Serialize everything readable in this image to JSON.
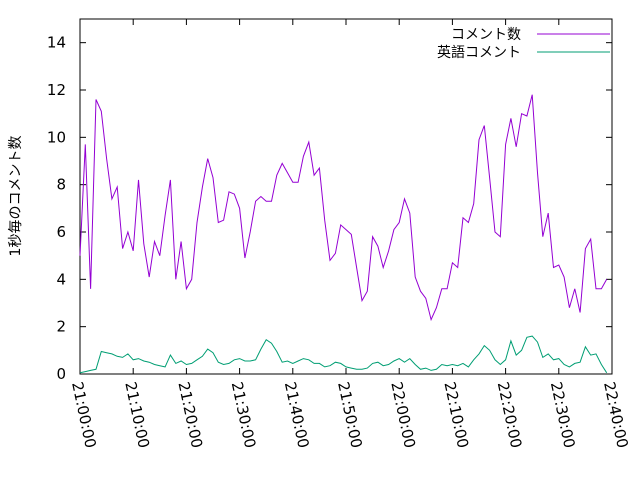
{
  "chart_data": {
    "type": "line",
    "title": "",
    "xlabel": "",
    "ylabel": "1秒毎のコメント数",
    "xlim": [
      "21:00:00",
      "22:40:00"
    ],
    "ylim": [
      0,
      15
    ],
    "x_ticks": [
      "21:00:00",
      "21:10:00",
      "21:20:00",
      "21:30:00",
      "21:40:00",
      "21:50:00",
      "22:00:00",
      "22:10:00",
      "22:20:00",
      "22:30:00",
      "22:40:00"
    ],
    "y_ticks": [
      0,
      2,
      4,
      6,
      8,
      10,
      12,
      14
    ],
    "grid": false,
    "legend_position": "top-right",
    "series": [
      {
        "name": "コメント数",
        "color": "#9400d3",
        "points": [
          [
            "21:00:00",
            5.0
          ],
          [
            "21:01:00",
            9.7
          ],
          [
            "21:02:00",
            3.6
          ],
          [
            "21:03:00",
            11.6
          ],
          [
            "21:04:00",
            11.1
          ],
          [
            "21:05:00",
            9.1
          ],
          [
            "21:06:00",
            7.4
          ],
          [
            "21:07:00",
            7.9
          ],
          [
            "21:08:00",
            5.3
          ],
          [
            "21:09:00",
            6.0
          ],
          [
            "21:10:00",
            5.2
          ],
          [
            "21:11:00",
            8.2
          ],
          [
            "21:12:00",
            5.5
          ],
          [
            "21:13:00",
            4.1
          ],
          [
            "21:14:00",
            5.6
          ],
          [
            "21:15:00",
            5.0
          ],
          [
            "21:16:00",
            6.7
          ],
          [
            "21:17:00",
            8.2
          ],
          [
            "21:18:00",
            4.0
          ],
          [
            "21:19:00",
            5.6
          ],
          [
            "21:20:00",
            3.6
          ],
          [
            "21:21:00",
            4.0
          ],
          [
            "21:22:00",
            6.4
          ],
          [
            "21:23:00",
            7.9
          ],
          [
            "21:24:00",
            9.1
          ],
          [
            "21:25:00",
            8.3
          ],
          [
            "21:26:00",
            6.4
          ],
          [
            "21:27:00",
            6.5
          ],
          [
            "21:28:00",
            7.7
          ],
          [
            "21:29:00",
            7.6
          ],
          [
            "21:30:00",
            7.0
          ],
          [
            "21:31:00",
            4.9
          ],
          [
            "21:32:00",
            6.0
          ],
          [
            "21:33:00",
            7.3
          ],
          [
            "21:34:00",
            7.5
          ],
          [
            "21:35:00",
            7.3
          ],
          [
            "21:36:00",
            7.3
          ],
          [
            "21:37:00",
            8.4
          ],
          [
            "21:38:00",
            8.9
          ],
          [
            "21:39:00",
            8.5
          ],
          [
            "21:40:00",
            8.1
          ],
          [
            "21:41:00",
            8.1
          ],
          [
            "21:42:00",
            9.2
          ],
          [
            "21:43:00",
            9.8
          ],
          [
            "21:44:00",
            8.4
          ],
          [
            "21:45:00",
            8.7
          ],
          [
            "21:46:00",
            6.5
          ],
          [
            "21:47:00",
            4.8
          ],
          [
            "21:48:00",
            5.1
          ],
          [
            "21:49:00",
            6.3
          ],
          [
            "21:50:00",
            6.1
          ],
          [
            "21:51:00",
            5.9
          ],
          [
            "21:52:00",
            4.5
          ],
          [
            "21:53:00",
            3.1
          ],
          [
            "21:54:00",
            3.5
          ],
          [
            "21:55:00",
            5.8
          ],
          [
            "21:56:00",
            5.4
          ],
          [
            "21:57:00",
            4.5
          ],
          [
            "21:58:00",
            5.2
          ],
          [
            "21:59:00",
            6.1
          ],
          [
            "22:00:00",
            6.4
          ],
          [
            "22:01:00",
            7.4
          ],
          [
            "22:02:00",
            6.8
          ],
          [
            "22:03:00",
            4.1
          ],
          [
            "22:04:00",
            3.5
          ],
          [
            "22:05:00",
            3.2
          ],
          [
            "22:06:00",
            2.3
          ],
          [
            "22:07:00",
            2.8
          ],
          [
            "22:08:00",
            3.6
          ],
          [
            "22:09:00",
            3.6
          ],
          [
            "22:10:00",
            4.7
          ],
          [
            "22:11:00",
            4.5
          ],
          [
            "22:12:00",
            6.6
          ],
          [
            "22:13:00",
            6.4
          ],
          [
            "22:14:00",
            7.2
          ],
          [
            "22:15:00",
            9.9
          ],
          [
            "22:16:00",
            10.5
          ],
          [
            "22:17:00",
            8.3
          ],
          [
            "22:18:00",
            6.0
          ],
          [
            "22:19:00",
            5.8
          ],
          [
            "22:20:00",
            9.7
          ],
          [
            "22:21:00",
            10.8
          ],
          [
            "22:22:00",
            9.6
          ],
          [
            "22:23:00",
            11.0
          ],
          [
            "22:24:00",
            10.9
          ],
          [
            "22:25:00",
            11.8
          ],
          [
            "22:26:00",
            8.5
          ],
          [
            "22:27:00",
            5.8
          ],
          [
            "22:28:00",
            6.8
          ],
          [
            "22:29:00",
            4.5
          ],
          [
            "22:30:00",
            4.6
          ],
          [
            "22:31:00",
            4.1
          ],
          [
            "22:32:00",
            2.8
          ],
          [
            "22:33:00",
            3.6
          ],
          [
            "22:34:00",
            2.6
          ],
          [
            "22:35:00",
            5.3
          ],
          [
            "22:36:00",
            5.7
          ],
          [
            "22:37:00",
            3.6
          ],
          [
            "22:38:00",
            3.6
          ],
          [
            "22:39:00",
            4.0
          ]
        ]
      },
      {
        "name": "英語コメント",
        "color": "#009e73",
        "points": [
          [
            "21:00:00",
            0.05
          ],
          [
            "21:01:00",
            0.1
          ],
          [
            "21:02:00",
            0.15
          ],
          [
            "21:03:00",
            0.2
          ],
          [
            "21:04:00",
            0.95
          ],
          [
            "21:05:00",
            0.9
          ],
          [
            "21:06:00",
            0.85
          ],
          [
            "21:07:00",
            0.75
          ],
          [
            "21:08:00",
            0.7
          ],
          [
            "21:09:00",
            0.85
          ],
          [
            "21:10:00",
            0.6
          ],
          [
            "21:11:00",
            0.65
          ],
          [
            "21:12:00",
            0.55
          ],
          [
            "21:13:00",
            0.5
          ],
          [
            "21:14:00",
            0.4
          ],
          [
            "21:15:00",
            0.35
          ],
          [
            "21:16:00",
            0.3
          ],
          [
            "21:17:00",
            0.8
          ],
          [
            "21:18:00",
            0.45
          ],
          [
            "21:19:00",
            0.55
          ],
          [
            "21:20:00",
            0.4
          ],
          [
            "21:21:00",
            0.45
          ],
          [
            "21:22:00",
            0.6
          ],
          [
            "21:23:00",
            0.75
          ],
          [
            "21:24:00",
            1.05
          ],
          [
            "21:25:00",
            0.9
          ],
          [
            "21:26:00",
            0.5
          ],
          [
            "21:27:00",
            0.4
          ],
          [
            "21:28:00",
            0.45
          ],
          [
            "21:29:00",
            0.6
          ],
          [
            "21:30:00",
            0.65
          ],
          [
            "21:31:00",
            0.55
          ],
          [
            "21:32:00",
            0.55
          ],
          [
            "21:33:00",
            0.6
          ],
          [
            "21:34:00",
            1.05
          ],
          [
            "21:35:00",
            1.45
          ],
          [
            "21:36:00",
            1.3
          ],
          [
            "21:37:00",
            0.95
          ],
          [
            "21:38:00",
            0.5
          ],
          [
            "21:39:00",
            0.55
          ],
          [
            "21:40:00",
            0.45
          ],
          [
            "21:41:00",
            0.55
          ],
          [
            "21:42:00",
            0.65
          ],
          [
            "21:43:00",
            0.6
          ],
          [
            "21:44:00",
            0.45
          ],
          [
            "21:45:00",
            0.45
          ],
          [
            "21:46:00",
            0.3
          ],
          [
            "21:47:00",
            0.35
          ],
          [
            "21:48:00",
            0.5
          ],
          [
            "21:49:00",
            0.45
          ],
          [
            "21:50:00",
            0.3
          ],
          [
            "21:51:00",
            0.25
          ],
          [
            "21:52:00",
            0.2
          ],
          [
            "21:53:00",
            0.2
          ],
          [
            "21:54:00",
            0.25
          ],
          [
            "21:55:00",
            0.45
          ],
          [
            "21:56:00",
            0.5
          ],
          [
            "21:57:00",
            0.35
          ],
          [
            "21:58:00",
            0.4
          ],
          [
            "21:59:00",
            0.55
          ],
          [
            "22:00:00",
            0.65
          ],
          [
            "22:01:00",
            0.5
          ],
          [
            "22:02:00",
            0.65
          ],
          [
            "22:03:00",
            0.4
          ],
          [
            "22:04:00",
            0.2
          ],
          [
            "22:05:00",
            0.25
          ],
          [
            "22:06:00",
            0.15
          ],
          [
            "22:07:00",
            0.2
          ],
          [
            "22:08:00",
            0.4
          ],
          [
            "22:09:00",
            0.35
          ],
          [
            "22:10:00",
            0.4
          ],
          [
            "22:11:00",
            0.35
          ],
          [
            "22:12:00",
            0.45
          ],
          [
            "22:13:00",
            0.3
          ],
          [
            "22:14:00",
            0.6
          ],
          [
            "22:15:00",
            0.85
          ],
          [
            "22:16:00",
            1.2
          ],
          [
            "22:17:00",
            1.0
          ],
          [
            "22:18:00",
            0.6
          ],
          [
            "22:19:00",
            0.4
          ],
          [
            "22:20:00",
            0.6
          ],
          [
            "22:21:00",
            1.4
          ],
          [
            "22:22:00",
            0.8
          ],
          [
            "22:23:00",
            1.0
          ],
          [
            "22:24:00",
            1.55
          ],
          [
            "22:25:00",
            1.6
          ],
          [
            "22:26:00",
            1.35
          ],
          [
            "22:27:00",
            0.7
          ],
          [
            "22:28:00",
            0.85
          ],
          [
            "22:29:00",
            0.6
          ],
          [
            "22:30:00",
            0.65
          ],
          [
            "22:31:00",
            0.4
          ],
          [
            "22:32:00",
            0.3
          ],
          [
            "22:33:00",
            0.45
          ],
          [
            "22:34:00",
            0.5
          ],
          [
            "22:35:00",
            1.15
          ],
          [
            "22:36:00",
            0.8
          ],
          [
            "22:37:00",
            0.85
          ],
          [
            "22:38:00",
            0.4
          ],
          [
            "22:39:00",
            0.05
          ]
        ]
      }
    ]
  }
}
